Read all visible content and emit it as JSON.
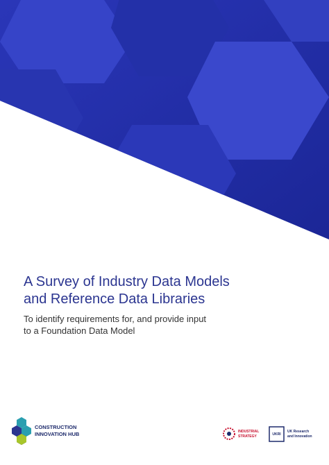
{
  "cover": {
    "title_lines": [
      "A Survey of Industry Data Models",
      "and Reference Data Libraries"
    ],
    "subtitle_lines": [
      "To identify requirements for, and provide input",
      "to a Foundation Data Model"
    ]
  },
  "footer": {
    "hub_lines": [
      "CONSTRUCTION",
      "INNOVATION HUB"
    ],
    "strategy_lines": [
      "INDUSTRIAL",
      "STRATEGY"
    ],
    "ukri_mark": "UKRI",
    "ukri_lines": [
      "UK Research",
      "and Innovation"
    ]
  }
}
